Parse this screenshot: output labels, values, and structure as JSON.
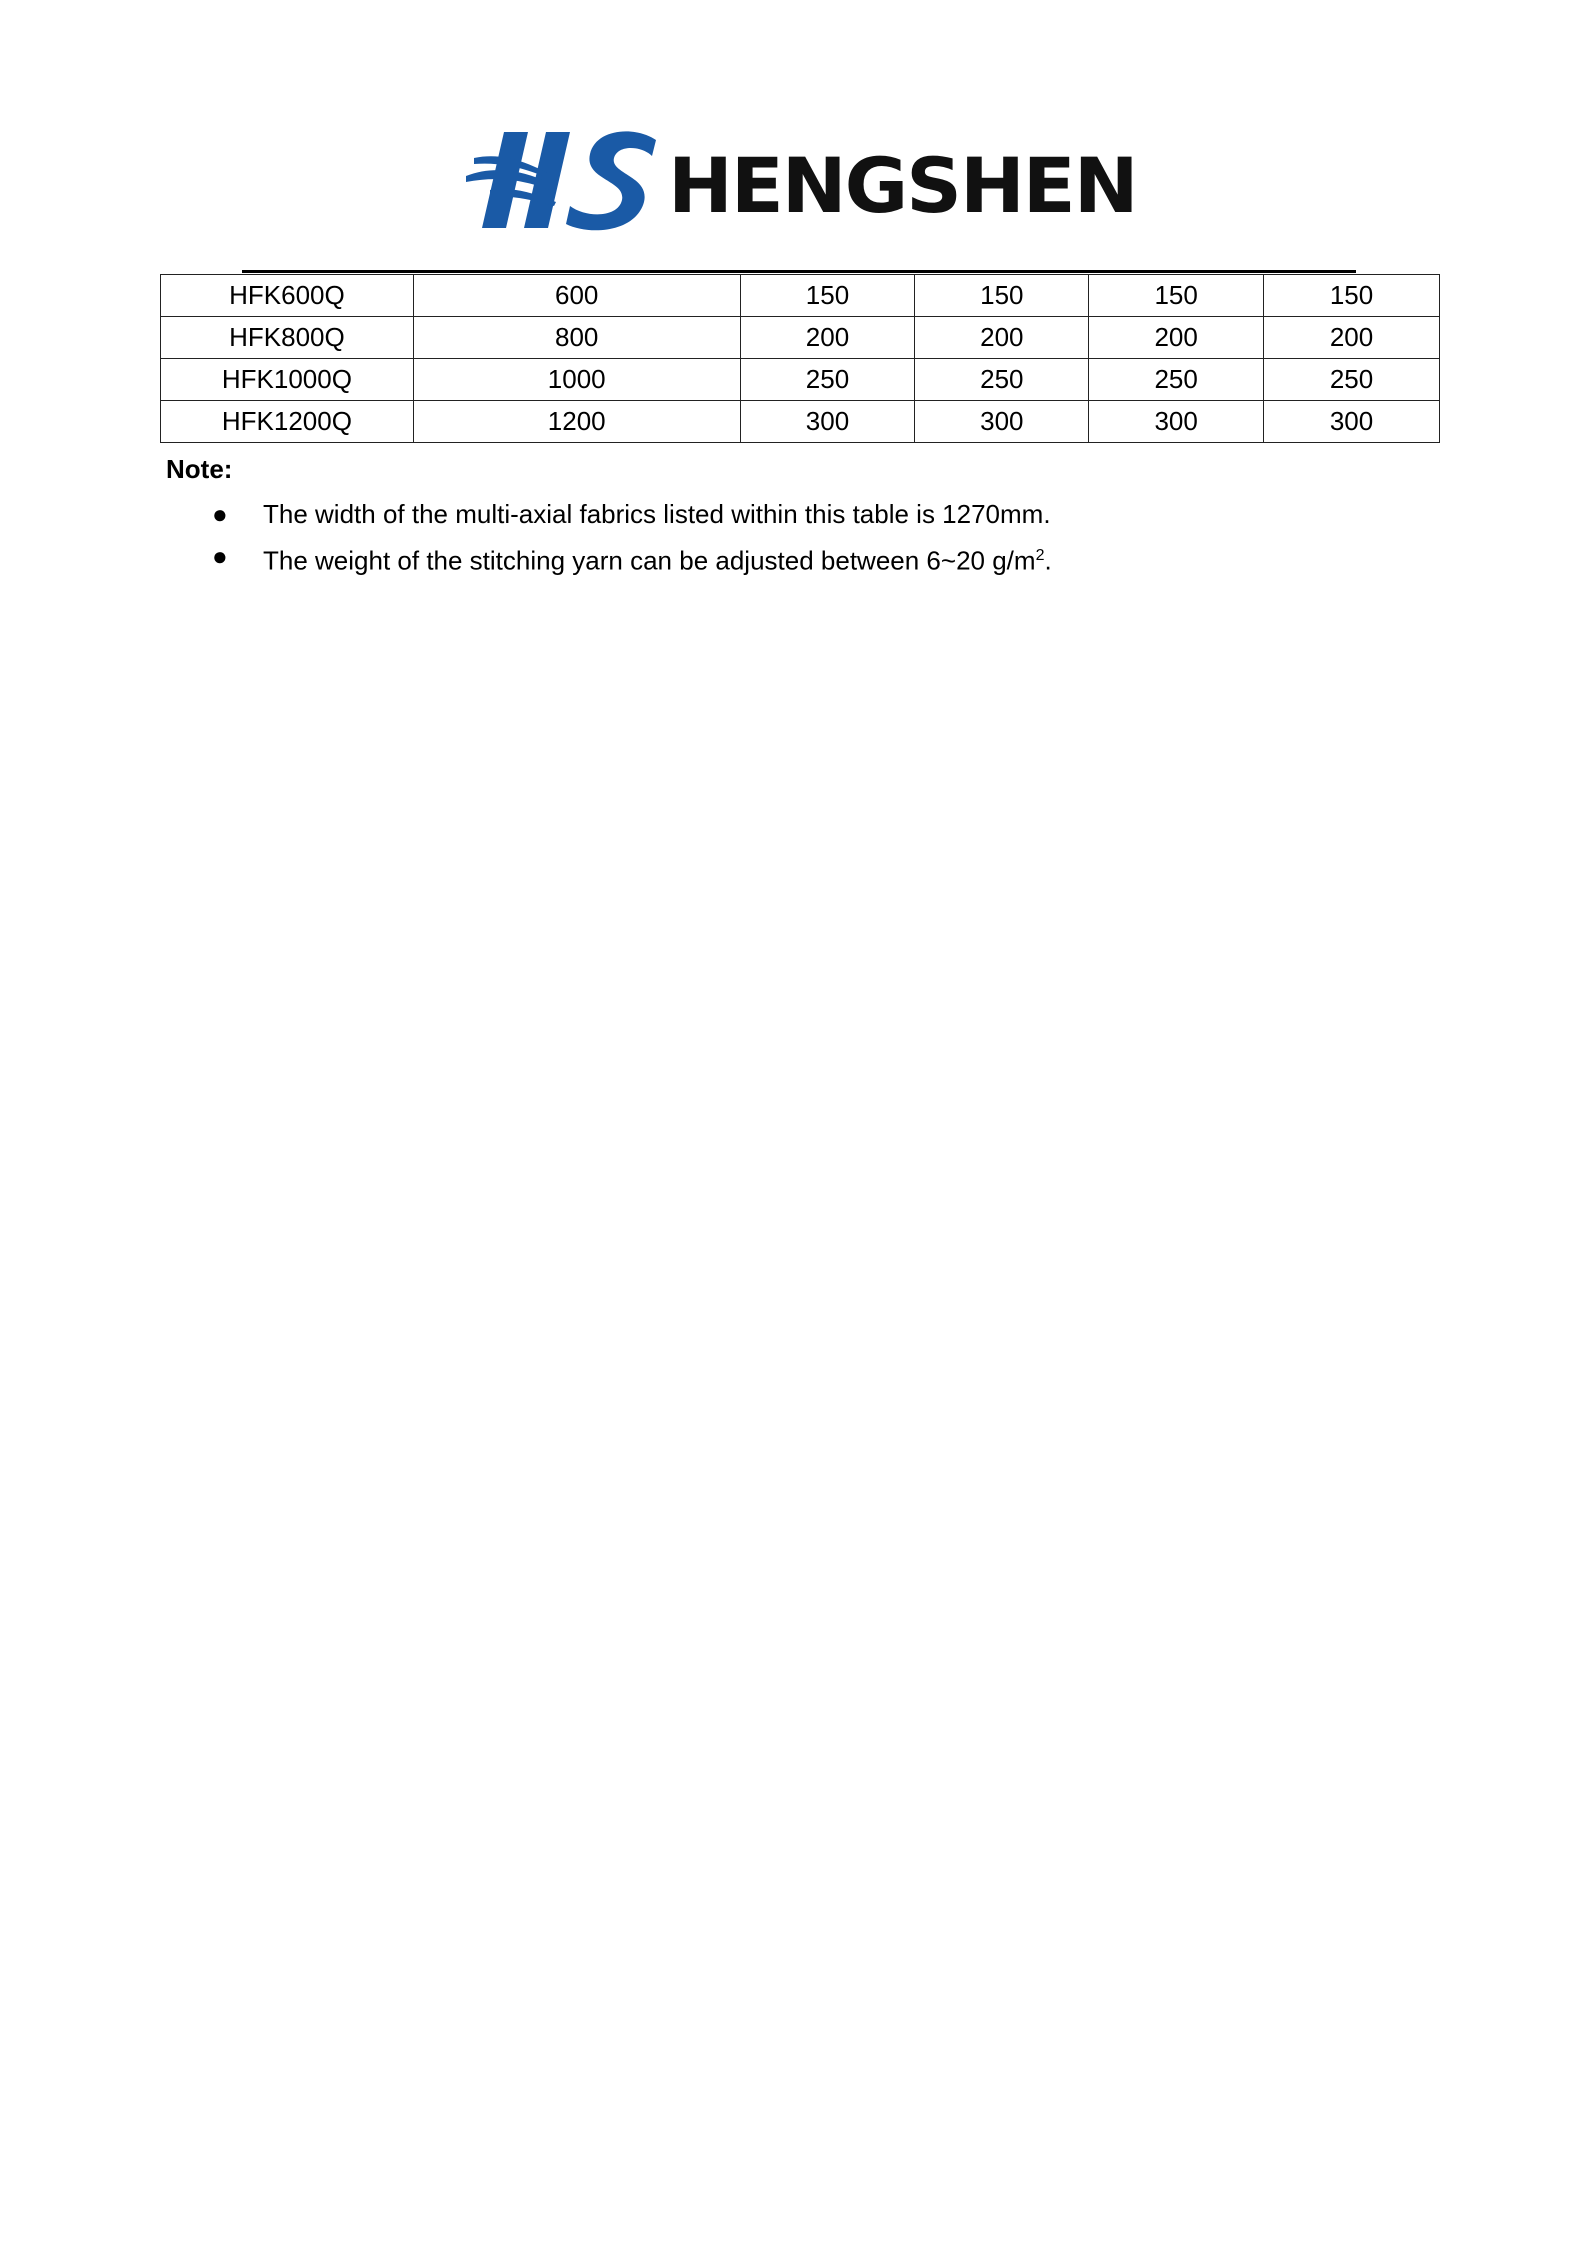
{
  "logo": {
    "mark": "HS",
    "name": "HENGSHEN",
    "brand_blue": "#1a5aa6"
  },
  "table": {
    "rows": [
      [
        "HFK600Q",
        "600",
        "150",
        "150",
        "150",
        "150"
      ],
      [
        "HFK800Q",
        "800",
        "200",
        "200",
        "200",
        "200"
      ],
      [
        "HFK1000Q",
        "1000",
        "250",
        "250",
        "250",
        "250"
      ],
      [
        "HFK1200Q",
        "1200",
        "300",
        "300",
        "300",
        "300"
      ]
    ]
  },
  "note": {
    "label": "Note:",
    "items": [
      {
        "text": "The width of the multi-axial fabrics listed within this table is 1270mm."
      },
      {
        "text": "The weight of the stitching yarn can be adjusted between 6~20 g/m",
        "sup": "2",
        "end": "."
      }
    ]
  }
}
